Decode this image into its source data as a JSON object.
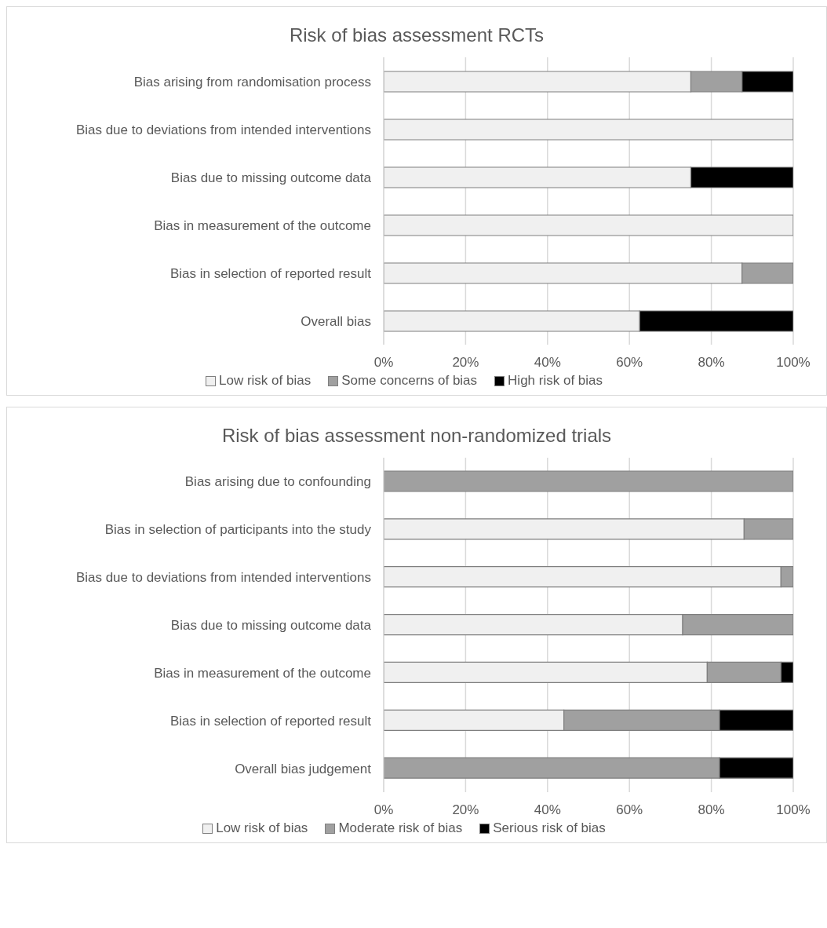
{
  "chart_data": [
    {
      "type": "bar",
      "title": "Risk of bias assessment RCTs",
      "orientation": "horizontal",
      "stacked": true,
      "categories": [
        "Bias arising from randomisation process",
        "Bias due to deviations from intended interventions",
        "Bias due to missing outcome data",
        "Bias in measurement of the outcome",
        "Bias in selection of reported result",
        "Overall bias"
      ],
      "series": [
        {
          "name": "Low risk of bias",
          "color": "#f0f0f0",
          "values": [
            75,
            100,
            75,
            100,
            87.5,
            62.5
          ]
        },
        {
          "name": "Some concerns of bias",
          "color": "#a0a0a0",
          "values": [
            12.5,
            0,
            0,
            0,
            12.5,
            0
          ]
        },
        {
          "name": "High risk of bias",
          "color": "#000000",
          "values": [
            12.5,
            0,
            25,
            0,
            0,
            37.5
          ]
        }
      ],
      "xlim": [
        0,
        100
      ],
      "xticks": [
        {
          "value": 0,
          "label": "0%"
        },
        {
          "value": 20,
          "label": "20%"
        },
        {
          "value": 40,
          "label": "40%"
        },
        {
          "value": 60,
          "label": "60%"
        },
        {
          "value": 80,
          "label": "80%"
        },
        {
          "value": 100,
          "label": "100%"
        }
      ],
      "grid": "x",
      "legend": "bottom"
    },
    {
      "type": "bar",
      "title": "Risk of bias assessment non-randomized trials",
      "orientation": "horizontal",
      "stacked": true,
      "categories": [
        "Bias arising due to confounding",
        "Bias in selection of participants into the study",
        "Bias due to deviations from intended interventions",
        "Bias due to missing outcome data",
        "Bias in measurement of the outcome",
        "Bias in selection of reported result",
        "Overall bias judgement"
      ],
      "series": [
        {
          "name": "Low risk of bias",
          "color": "#f0f0f0",
          "values": [
            0,
            88,
            97,
            73,
            79,
            44,
            0
          ]
        },
        {
          "name": "Moderate risk of bias",
          "color": "#a0a0a0",
          "values": [
            100,
            12,
            3,
            27,
            18,
            38,
            82
          ]
        },
        {
          "name": "Serious risk of bias",
          "color": "#000000",
          "values": [
            0,
            0,
            0,
            0,
            3,
            18,
            18
          ]
        }
      ],
      "xlim": [
        0,
        100
      ],
      "xticks": [
        {
          "value": 0,
          "label": "0%"
        },
        {
          "value": 20,
          "label": "20%"
        },
        {
          "value": 40,
          "label": "40%"
        },
        {
          "value": 60,
          "label": "60%"
        },
        {
          "value": 80,
          "label": "80%"
        },
        {
          "value": 100,
          "label": "100%"
        }
      ],
      "grid": "x",
      "legend": "bottom"
    }
  ]
}
